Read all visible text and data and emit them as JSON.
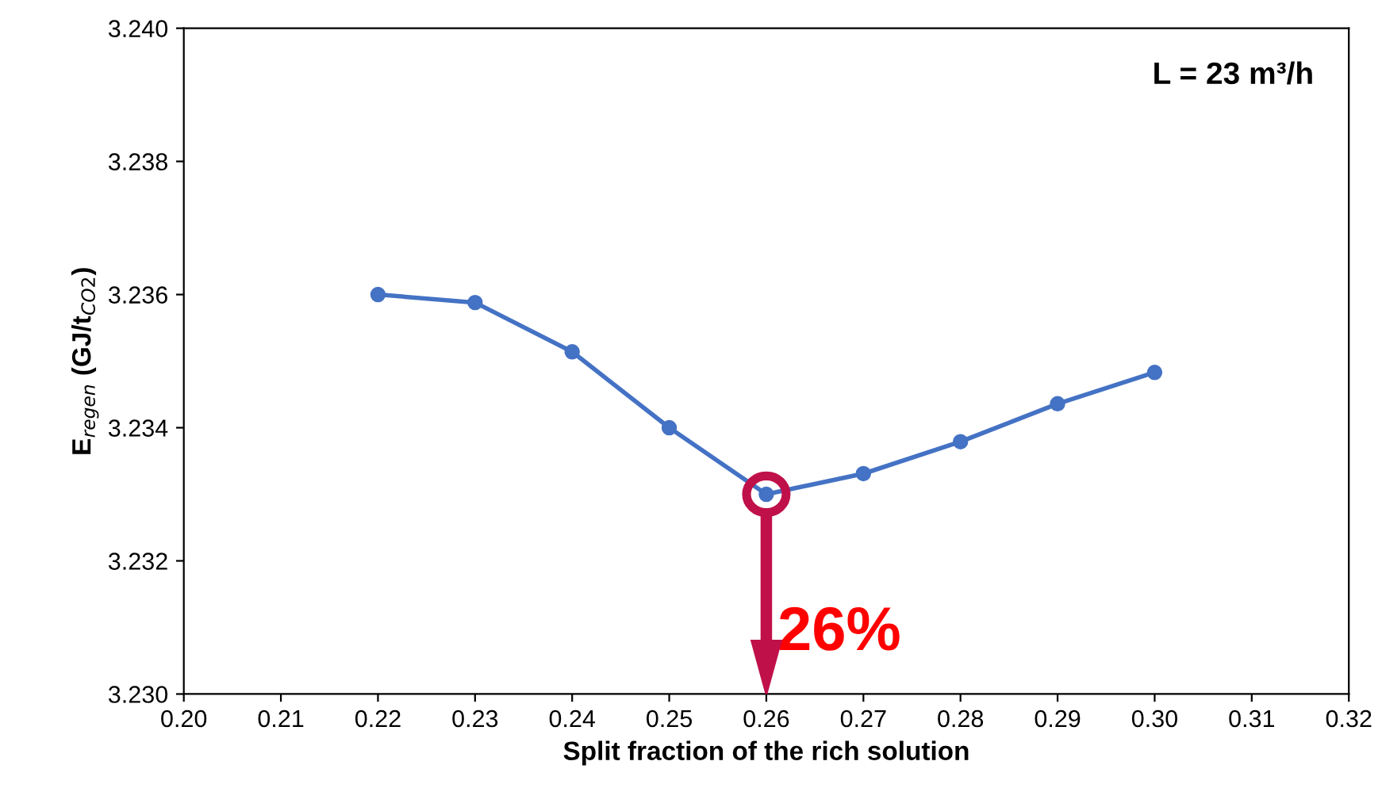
{
  "chart_data": {
    "type": "line",
    "xlabel": "Split fraction of the rich solution",
    "ylabel": "E$_{regen}$ (GJ/t$_{CO2}$)",
    "x": [
      0.22,
      0.23,
      0.24,
      0.25,
      0.26,
      0.27,
      0.28,
      0.29,
      0.3
    ],
    "series": [
      {
        "color": "#4472c4",
        "values": [
          3.236,
          3.23588,
          3.23514,
          3.234,
          3.233,
          3.23331,
          3.23379,
          3.23436,
          3.23483
        ]
      }
    ],
    "marker": "circle",
    "line_style": "solid",
    "grid": false,
    "legend": false,
    "xlim": [
      0.2,
      0.32
    ],
    "xticks": [
      {
        "value": 0.2,
        "label": "0.20"
      },
      {
        "value": 0.21,
        "label": "0.21"
      },
      {
        "value": 0.22,
        "label": "0.22"
      },
      {
        "value": 0.23,
        "label": "0.23"
      },
      {
        "value": 0.24,
        "label": "0.24"
      },
      {
        "value": 0.25,
        "label": "0.25"
      },
      {
        "value": 0.26,
        "label": "0.26"
      },
      {
        "value": 0.27,
        "label": "0.27"
      },
      {
        "value": 0.28,
        "label": "0.28"
      },
      {
        "value": 0.29,
        "label": "0.29"
      },
      {
        "value": 0.3,
        "label": "0.30"
      },
      {
        "value": 0.31,
        "label": "0.31"
      },
      {
        "value": 0.32,
        "label": "0.32"
      }
    ],
    "ylim": [
      3.23,
      3.24
    ],
    "yticks": [
      {
        "value": 3.23,
        "label": "3.230"
      },
      {
        "value": 3.232,
        "label": "3.232"
      },
      {
        "value": 3.234,
        "label": "3.234"
      },
      {
        "value": 3.236,
        "label": "3.236"
      },
      {
        "value": 3.238,
        "label": "3.238"
      },
      {
        "value": 3.24,
        "label": "3.240"
      }
    ],
    "annotations": [
      "L = 23 m³/h",
      {
        "text": "26%",
        "x": 0.26,
        "y": 3.233
      }
    ]
  }
}
